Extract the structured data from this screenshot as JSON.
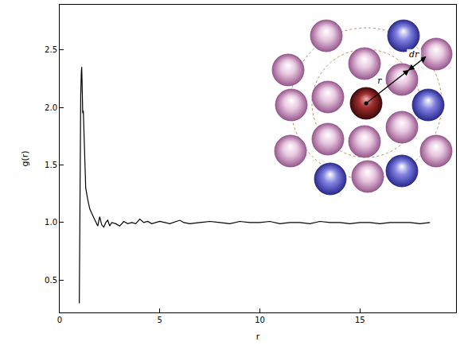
{
  "chart_data": {
    "type": "line",
    "x_label": "r",
    "y_label": "g(r)",
    "x": [
      0.98,
      1.0,
      1.02,
      1.05,
      1.08,
      1.1,
      1.12,
      1.15,
      1.18,
      1.2,
      1.25,
      1.3,
      1.4,
      1.5,
      1.6,
      1.7,
      1.8,
      1.9,
      2.0,
      2.1,
      2.2,
      2.3,
      2.4,
      2.5,
      2.6,
      2.8,
      3.0,
      3.2,
      3.4,
      3.6,
      3.8,
      4.0,
      4.2,
      4.4,
      4.6,
      4.8,
      5.0,
      5.5,
      6.0,
      6.2,
      6.5,
      7.0,
      7.5,
      8.0,
      8.5,
      9.0,
      9.5,
      10.0,
      10.5,
      11,
      11.5,
      12,
      12.5,
      13,
      13.5,
      14,
      14.5,
      15,
      15.5,
      16,
      16.5,
      17,
      17.5,
      18,
      18.5
    ],
    "values": [
      0.3,
      0.9,
      1.6,
      2.1,
      2.3,
      2.35,
      2.2,
      1.95,
      1.97,
      1.85,
      1.5,
      1.3,
      1.2,
      1.12,
      1.08,
      1.04,
      1.0,
      0.97,
      1.05,
      0.98,
      0.96,
      1.0,
      1.02,
      0.97,
      1.0,
      0.99,
      0.97,
      1.01,
      0.99,
      1.0,
      0.99,
      1.03,
      1.0,
      1.01,
      0.99,
      1.0,
      1.01,
      0.99,
      1.02,
      1.0,
      0.99,
      1.0,
      1.01,
      1.0,
      0.99,
      1.01,
      1.0,
      1.0,
      1.01,
      0.99,
      1.0,
      1.0,
      0.99,
      1.01,
      1.0,
      1.0,
      0.99,
      1.0,
      1.0,
      0.99,
      1.0,
      1.0,
      1.0,
      0.99,
      1.0
    ],
    "color": "#000000",
    "xlim": [
      0,
      19.8
    ],
    "ylim": [
      0.22,
      2.89
    ],
    "xticks": [
      0,
      5,
      10,
      15
    ],
    "yticks": [
      0.5,
      {
        "value": 1,
        "label": "1.0"
      },
      1.5,
      {
        "value": 2,
        "label": "2.0"
      },
      2.5
    ],
    "grid": false,
    "annotations": [
      "r",
      "dr"
    ]
  }
}
